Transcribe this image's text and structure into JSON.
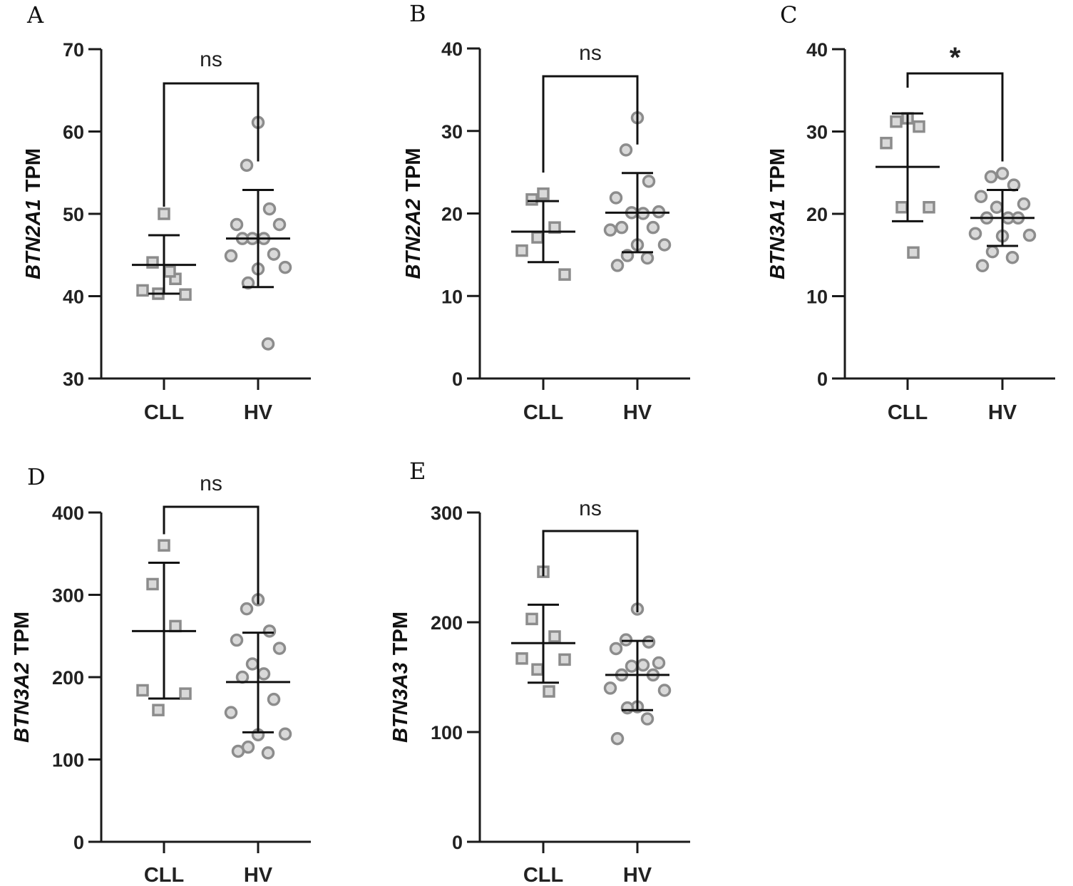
{
  "figure": {
    "categories": [
      "CLL",
      "HV"
    ]
  },
  "chart_data": [
    {
      "panel": "A",
      "type": "scatter",
      "ylabel_gene": "BTN2A1",
      "ylabel_unit": "TPM",
      "ylim": [
        30,
        70
      ],
      "yticks": [
        30,
        40,
        50,
        60,
        70
      ],
      "significance": "ns",
      "groups": [
        {
          "name": "CLL",
          "marker": "square",
          "mean": 43.8,
          "sd": [
            40.3,
            47.4
          ],
          "points": [
            50.0,
            44.1,
            42.1,
            40.7,
            40.2,
            40.3,
            43.0
          ]
        },
        {
          "name": "HV",
          "marker": "circle",
          "mean": 47.0,
          "sd": [
            41.1,
            52.9
          ],
          "points": [
            61.1,
            55.9,
            50.6,
            48.7,
            48.7,
            47.0,
            47.0,
            47.0,
            45.1,
            44.9,
            43.5,
            43.3,
            41.6,
            34.2
          ]
        }
      ]
    },
    {
      "panel": "B",
      "type": "scatter",
      "ylabel_gene": "BTN2A2",
      "ylabel_unit": "TPM",
      "ylim": [
        0,
        40
      ],
      "yticks": [
        0,
        10,
        20,
        30,
        40
      ],
      "significance": "ns",
      "groups": [
        {
          "name": "CLL",
          "marker": "square",
          "mean": 17.8,
          "sd": [
            14.1,
            21.5
          ],
          "points": [
            22.4,
            21.7,
            18.3,
            15.5,
            12.6,
            17.1
          ]
        },
        {
          "name": "HV",
          "marker": "circle",
          "mean": 20.1,
          "sd": [
            15.3,
            24.9
          ],
          "points": [
            31.6,
            27.7,
            23.9,
            21.9,
            20.2,
            20.1,
            20.0,
            18.3,
            18.3,
            18.0,
            16.2,
            16.2,
            14.9,
            14.6,
            13.7
          ]
        }
      ]
    },
    {
      "panel": "C",
      "type": "scatter",
      "ylabel_gene": "BTN3A1",
      "ylabel_unit": "TPM",
      "ylim": [
        0,
        40
      ],
      "yticks": [
        0,
        10,
        20,
        30,
        40
      ],
      "significance": "*",
      "groups": [
        {
          "name": "CLL",
          "marker": "square",
          "mean": 25.7,
          "sd": [
            19.1,
            32.2
          ],
          "points": [
            31.6,
            31.2,
            30.6,
            28.6,
            20.8,
            20.8,
            15.3
          ]
        },
        {
          "name": "HV",
          "marker": "circle",
          "mean": 19.5,
          "sd": [
            16.1,
            22.9
          ],
          "points": [
            24.9,
            24.5,
            23.5,
            22.1,
            21.2,
            20.8,
            19.5,
            19.5,
            19.5,
            17.6,
            17.4,
            17.3,
            15.4,
            14.7,
            13.7
          ]
        }
      ]
    },
    {
      "panel": "D",
      "type": "scatter",
      "ylabel_gene": "BTN3A2",
      "ylabel_unit": "TPM",
      "ylim": [
        0,
        400
      ],
      "yticks": [
        0,
        100,
        200,
        300,
        400
      ],
      "significance": "ns",
      "groups": [
        {
          "name": "CLL",
          "marker": "square",
          "mean": 256,
          "sd": [
            174,
            339
          ],
          "points": [
            360,
            313,
            262,
            184,
            180,
            160
          ]
        },
        {
          "name": "HV",
          "marker": "circle",
          "mean": 194,
          "sd": [
            133,
            254
          ],
          "points": [
            294,
            283,
            256,
            245,
            235,
            216,
            204,
            200,
            173,
            157,
            131,
            130,
            115,
            108,
            110
          ]
        }
      ]
    },
    {
      "panel": "E",
      "type": "scatter",
      "ylabel_gene": "BTN3A3",
      "ylabel_unit": "TPM",
      "ylim": [
        0,
        300
      ],
      "yticks": [
        0,
        100,
        200,
        300
      ],
      "significance": "ns",
      "groups": [
        {
          "name": "CLL",
          "marker": "square",
          "mean": 181,
          "sd": [
            145,
            216
          ],
          "points": [
            246,
            203,
            187,
            167,
            166,
            157,
            137
          ]
        },
        {
          "name": "HV",
          "marker": "circle",
          "mean": 152,
          "sd": [
            120,
            183
          ],
          "points": [
            212,
            184,
            182,
            176,
            163,
            160,
            161,
            152,
            152,
            140,
            138,
            123,
            122,
            112,
            94
          ]
        }
      ]
    }
  ]
}
